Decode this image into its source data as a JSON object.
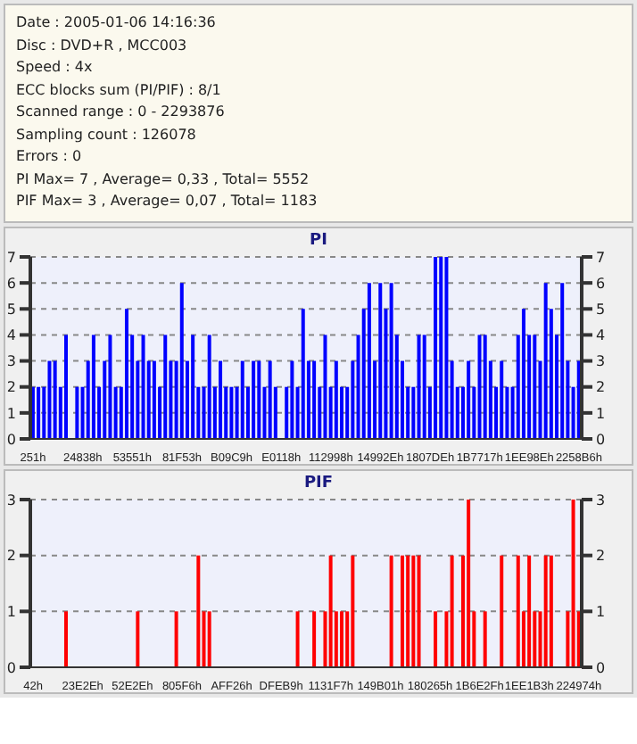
{
  "chart_data": [
    {
      "type": "other",
      "annotations": [
        "Date : 2005-01-06 14:16:36",
        "Disc : DVD+R , MCC003",
        "Speed : 4x",
        "ECC blocks sum (PI/PIF) : 8/1",
        "Scanned range : 0 - 2293876",
        "Sampling count : 126078",
        "Errors : 0",
        "PI Max= 7 , Average= 0,33 , Total= 5552",
        "PIF Max= 3 , Average= 0,07 , Total= 1183"
      ]
    },
    {
      "type": "bar",
      "title": "PI",
      "color": "#0000ff",
      "grid": "y",
      "ylim": [
        0,
        7
      ],
      "yticks": [
        0,
        1,
        2,
        3,
        4,
        5,
        6,
        7
      ],
      "y2lim": [
        0,
        7
      ],
      "y2ticks": [
        0,
        1,
        2,
        3,
        4,
        5,
        6,
        7
      ],
      "categories": [
        "251h",
        null,
        null,
        null,
        null,
        null,
        null,
        null,
        null,
        "24838h",
        null,
        null,
        null,
        null,
        null,
        null,
        null,
        null,
        "53551h",
        null,
        null,
        null,
        null,
        null,
        null,
        null,
        null,
        "81F53h",
        null,
        null,
        null,
        null,
        null,
        null,
        null,
        null,
        "B09C9h",
        null,
        null,
        null,
        null,
        null,
        null,
        null,
        null,
        "E0118h",
        null,
        null,
        null,
        null,
        null,
        null,
        null,
        null,
        "112998h",
        null,
        null,
        null,
        null,
        null,
        null,
        null,
        null,
        "14992Eh",
        null,
        null,
        null,
        null,
        null,
        null,
        null,
        null,
        "1807DEh",
        null,
        null,
        null,
        null,
        null,
        null,
        null,
        null,
        "1B7717h",
        null,
        null,
        null,
        null,
        null,
        null,
        null,
        null,
        "1EE98Eh",
        null,
        null,
        null,
        null,
        null,
        null,
        null,
        null,
        "2258B6h"
      ],
      "values": [
        2,
        2,
        2,
        3,
        3,
        2,
        4,
        0,
        2,
        2,
        3,
        4,
        2,
        3,
        4,
        2,
        2,
        5,
        4,
        3,
        4,
        3,
        3,
        2,
        4,
        3,
        3,
        6,
        3,
        4,
        2,
        2,
        4,
        2,
        3,
        2,
        2,
        2,
        3,
        2,
        3,
        3,
        2,
        3,
        2,
        0,
        2,
        3,
        2,
        5,
        3,
        3,
        2,
        4,
        2,
        3,
        2,
        2,
        3,
        4,
        5,
        6,
        3,
        6,
        5,
        6,
        4,
        3,
        2,
        2,
        4,
        4,
        2,
        7,
        7,
        7,
        3,
        2,
        2,
        3,
        2,
        4,
        4,
        3,
        2,
        3,
        2,
        2,
        4,
        5,
        4,
        4,
        3,
        6,
        5,
        4,
        6,
        3,
        2,
        3
      ]
    },
    {
      "type": "bar",
      "title": "PIF",
      "color": "#ff0000",
      "grid": "y",
      "ylim": [
        0,
        3
      ],
      "yticks": [
        0,
        1,
        2,
        3
      ],
      "y2lim": [
        0,
        3
      ],
      "y2ticks": [
        0,
        1,
        2,
        3
      ],
      "categories": [
        "42h",
        null,
        null,
        null,
        null,
        null,
        null,
        null,
        null,
        "23E2Eh",
        null,
        null,
        null,
        null,
        null,
        null,
        null,
        null,
        "52E2Eh",
        null,
        null,
        null,
        null,
        null,
        null,
        null,
        null,
        "805F6h",
        null,
        null,
        null,
        null,
        null,
        null,
        null,
        null,
        "AFF26h",
        null,
        null,
        null,
        null,
        null,
        null,
        null,
        null,
        "DFEB9h",
        null,
        null,
        null,
        null,
        null,
        null,
        null,
        null,
        "1131F7h",
        null,
        null,
        null,
        null,
        null,
        null,
        null,
        null,
        "149B01h",
        null,
        null,
        null,
        null,
        null,
        null,
        null,
        null,
        "180265h",
        null,
        null,
        null,
        null,
        null,
        null,
        null,
        null,
        "1B6E2Fh",
        null,
        null,
        null,
        null,
        null,
        null,
        null,
        null,
        "1EE1B3h",
        null,
        null,
        null,
        null,
        null,
        null,
        null,
        null,
        "224974h"
      ],
      "values": [
        0,
        0,
        0,
        0,
        0,
        0,
        1,
        0,
        0,
        0,
        0,
        0,
        0,
        0,
        0,
        0,
        0,
        0,
        0,
        1,
        0,
        0,
        0,
        0,
        0,
        0,
        1,
        0,
        0,
        0,
        2,
        1,
        1,
        0,
        0,
        0,
        0,
        0,
        0,
        0,
        0,
        0,
        0,
        0,
        0,
        0,
        0,
        0,
        1,
        0,
        0,
        1,
        0,
        1,
        2,
        1,
        1,
        1,
        2,
        0,
        0,
        0,
        0,
        0,
        0,
        2,
        0,
        2,
        2,
        2,
        2,
        0,
        0,
        1,
        0,
        1,
        2,
        0,
        2,
        3,
        1,
        0,
        1,
        0,
        0,
        2,
        0,
        0,
        2,
        1,
        2,
        1,
        1,
        2,
        2,
        0,
        0,
        1,
        3,
        1
      ]
    }
  ]
}
